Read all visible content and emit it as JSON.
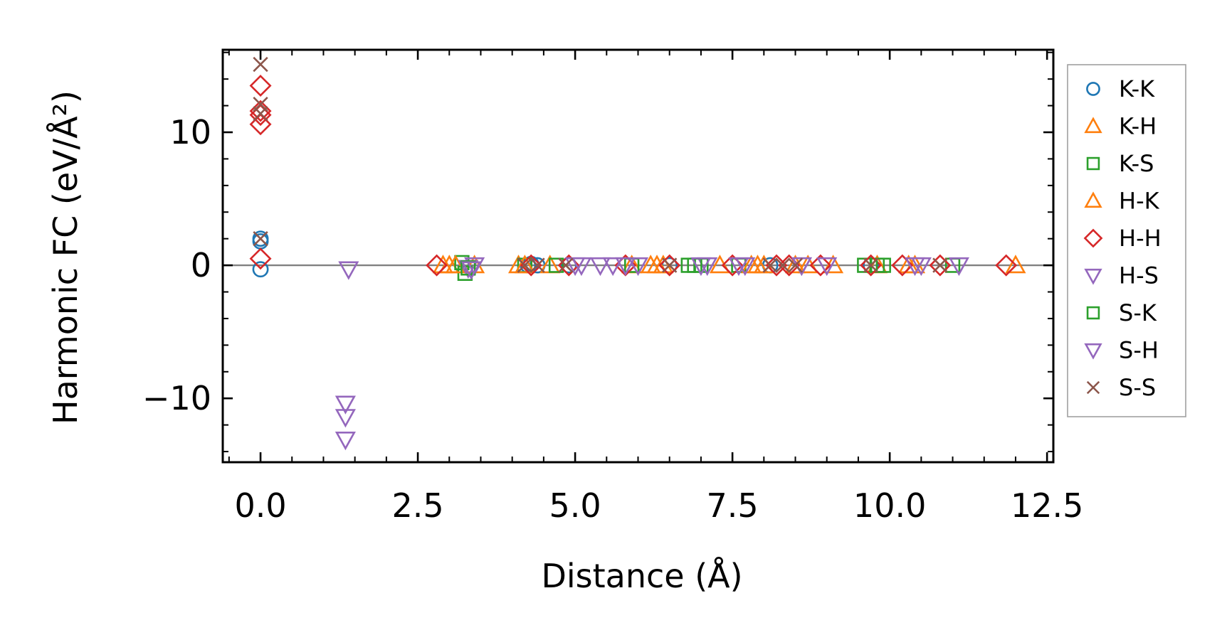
{
  "chart_data": {
    "type": "scatter",
    "title": "",
    "xlabel": "Distance (Å)",
    "ylabel": "Harmonic FC (eV/Å²)",
    "xlim": [
      -0.6,
      12.6
    ],
    "ylim": [
      -14.8,
      16.2
    ],
    "xticks": [
      0.0,
      2.5,
      5.0,
      7.5,
      10.0,
      12.5
    ],
    "xtick_labels": [
      "0.0",
      "2.5",
      "5.0",
      "7.5",
      "10.0",
      "12.5"
    ],
    "yticks": [
      -10,
      0,
      10
    ],
    "ytick_labels": [
      "−10",
      "0",
      "10"
    ],
    "zero_line": true,
    "grid": false,
    "legend_position": "right",
    "series": [
      {
        "name": "K-K",
        "marker": "circle",
        "color": "#1f77b4",
        "x": [
          0.0,
          0.0,
          0.0,
          4.25,
          4.3,
          4.4,
          4.9,
          6.5,
          8.1,
          9.7
        ],
        "y": [
          2.0,
          1.8,
          -0.3,
          0.0,
          0.1,
          0.0,
          0.0,
          0.0,
          0.0,
          0.0
        ]
      },
      {
        "name": "K-H",
        "marker": "triangle-up",
        "color": "#ff7f0e",
        "x": [
          2.9,
          3.0,
          3.4,
          4.1,
          4.6,
          5.9,
          6.2,
          6.4,
          7.3,
          7.9,
          8.0,
          8.5,
          9.1,
          9.8,
          10.4,
          12.0
        ],
        "y": [
          0.0,
          0.0,
          0.0,
          0.0,
          0.0,
          0.0,
          0.0,
          0.0,
          0.0,
          0.0,
          0.0,
          0.0,
          0.0,
          0.0,
          0.0,
          0.0
        ]
      },
      {
        "name": "K-S",
        "marker": "square",
        "color": "#2ca02c",
        "x": [
          3.2,
          3.25,
          4.2,
          4.7,
          5.9,
          6.8,
          7.0,
          7.6,
          9.6,
          9.8,
          11.0
        ],
        "y": [
          0.2,
          -0.6,
          0.0,
          0.0,
          0.0,
          0.0,
          0.0,
          0.0,
          0.0,
          0.0,
          0.0
        ]
      },
      {
        "name": "H-K",
        "marker": "triangle-up",
        "color": "#ff7f0e",
        "x": [
          3.1,
          4.2,
          6.3,
          7.8,
          8.7,
          10.3
        ],
        "y": [
          0.0,
          0.0,
          0.0,
          0.0,
          0.0,
          0.0
        ]
      },
      {
        "name": "H-H",
        "marker": "diamond",
        "color": "#d62728",
        "x": [
          0.0,
          0.0,
          0.0,
          0.0,
          0.0,
          2.8,
          4.3,
          4.9,
          5.8,
          6.5,
          7.5,
          8.2,
          8.4,
          8.9,
          9.7,
          10.2,
          10.8,
          11.85
        ],
        "y": [
          13.5,
          11.3,
          10.6,
          0.5,
          11.6,
          0.0,
          0.0,
          0.0,
          0.0,
          0.0,
          0.0,
          0.0,
          0.0,
          0.0,
          0.0,
          0.0,
          0.0,
          0.0
        ]
      },
      {
        "name": "H-S",
        "marker": "triangle-down",
        "color": "#9467bd",
        "x": [
          1.4,
          1.35,
          1.35,
          1.35,
          3.3,
          3.4,
          5.0,
          5.4,
          5.6,
          6.0,
          7.1,
          7.6,
          8.6,
          9.0,
          10.4,
          11.1
        ],
        "y": [
          -0.3,
          -10.4,
          -11.4,
          -13.1,
          -0.2,
          0.0,
          0.0,
          0.0,
          0.0,
          0.0,
          0.0,
          0.0,
          0.0,
          0.0,
          0.0,
          0.0
        ]
      },
      {
        "name": "S-K",
        "marker": "square",
        "color": "#2ca02c",
        "x": [
          3.3,
          6.9,
          9.9
        ],
        "y": [
          -0.2,
          0.0,
          0.0
        ]
      },
      {
        "name": "S-H",
        "marker": "triangle-down",
        "color": "#9467bd",
        "x": [
          3.35,
          5.1,
          5.8,
          7.0,
          7.7,
          8.6,
          10.5
        ],
        "y": [
          -0.3,
          0.0,
          0.0,
          0.0,
          0.0,
          0.0,
          0.0
        ]
      },
      {
        "name": "S-S",
        "marker": "x",
        "color": "#8c564b",
        "x": [
          0.0,
          0.0,
          0.0,
          0.0,
          4.2,
          4.4,
          4.85,
          6.5,
          8.1,
          8.3,
          8.5,
          9.7,
          10.8
        ],
        "y": [
          15.1,
          12.1,
          11.4,
          2.0,
          0.0,
          0.0,
          0.0,
          0.0,
          0.0,
          0.0,
          0.0,
          0.0,
          0.0
        ]
      }
    ]
  }
}
